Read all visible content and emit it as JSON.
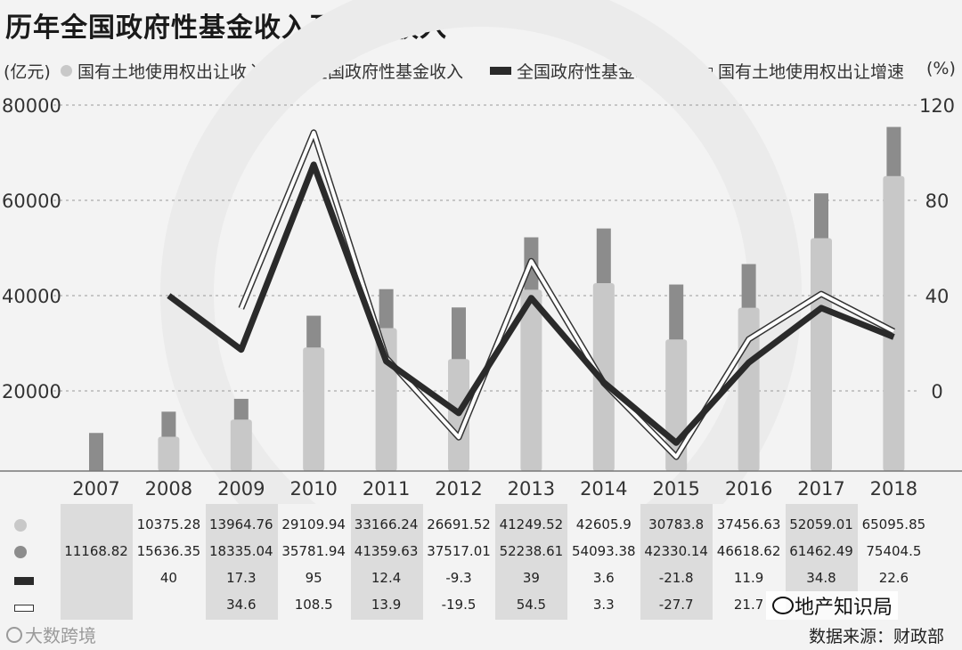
{
  "title": "历年全国政府性基金收入及土地收入",
  "legend": {
    "left_unit": "(亿元)",
    "right_unit": "(%)",
    "items": [
      {
        "label": "国有土地使用权出让收入",
        "color": "#c8c8c8"
      },
      {
        "label": "全国政府性基金收入",
        "color": "#8c8c8c"
      },
      {
        "label": "全国政府性基金增速",
        "color": "#2a2a2a"
      },
      {
        "label": "国有土地使用权出让增速",
        "color": "#ffffff"
      }
    ]
  },
  "chart_data": {
    "type": "bar",
    "categories": [
      "2007",
      "2008",
      "2009",
      "2010",
      "2011",
      "2012",
      "2013",
      "2014",
      "2015",
      "2016",
      "2017",
      "2018"
    ],
    "y_left_ticks": [
      "80000",
      "60000",
      "40000",
      "20000"
    ],
    "y_right_ticks": [
      "120",
      "80",
      "40",
      "0"
    ],
    "series": [
      {
        "name": "国有土地使用权出让收入",
        "kind": "bar",
        "color": "#c8c8c8",
        "values": [
          null,
          10375.28,
          13964.76,
          29109.94,
          33166.24,
          26691.52,
          41249.52,
          42605.9,
          30783.8,
          37456.63,
          52059.01,
          65095.85
        ]
      },
      {
        "name": "全国政府性基金收入",
        "kind": "bar",
        "color": "#8c8c8c",
        "values": [
          11168.82,
          15636.35,
          18335.04,
          35781.94,
          41359.63,
          37517.01,
          52238.61,
          54093.38,
          42330.14,
          46618.62,
          61462.49,
          75404.5
        ]
      },
      {
        "name": "全国政府性基金增速",
        "kind": "line",
        "color": "#2a2a2a",
        "values": [
          null,
          40,
          17.3,
          95,
          12.4,
          -9.3,
          39,
          3.6,
          -21.8,
          11.9,
          34.8,
          22.6
        ]
      },
      {
        "name": "国有土地使用权出让增速",
        "kind": "line",
        "color": "#ffffff",
        "values": [
          null,
          null,
          34.6,
          108.5,
          13.9,
          -19.5,
          54.5,
          3.3,
          -27.7,
          21.7,
          40.7,
          25.0
        ]
      }
    ]
  },
  "table_rows": [
    {
      "icon": "land-revenue-dot",
      "values": [
        "",
        "10375.28",
        "13964.76",
        "29109.94",
        "33166.24",
        "26691.52",
        "41249.52",
        "42605.9",
        "30783.8",
        "37456.63",
        "52059.01",
        "65095.85"
      ]
    },
    {
      "icon": "fund-revenue-dot",
      "values": [
        "11168.82",
        "15636.35",
        "18335.04",
        "35781.94",
        "41359.63",
        "37517.01",
        "52238.61",
        "54093.38",
        "42330.14",
        "46618.62",
        "61462.49",
        "75404.5"
      ]
    },
    {
      "icon": "fund-growth-swatch",
      "values": [
        "",
        "40",
        "17.3",
        "95",
        "12.4",
        "-9.3",
        "39",
        "3.6",
        "-21.8",
        "11.9",
        "34.8",
        "22.6"
      ]
    },
    {
      "icon": "land-growth-swatch",
      "values": [
        "",
        "",
        "34.6",
        "108.5",
        "13.9",
        "-19.5",
        "54.5",
        "3.3",
        "-27.7",
        "21.7",
        "",
        ""
      ]
    }
  ],
  "watermark": "大数跨境",
  "brand": "地产知识局",
  "source": "数据来源：财政部"
}
